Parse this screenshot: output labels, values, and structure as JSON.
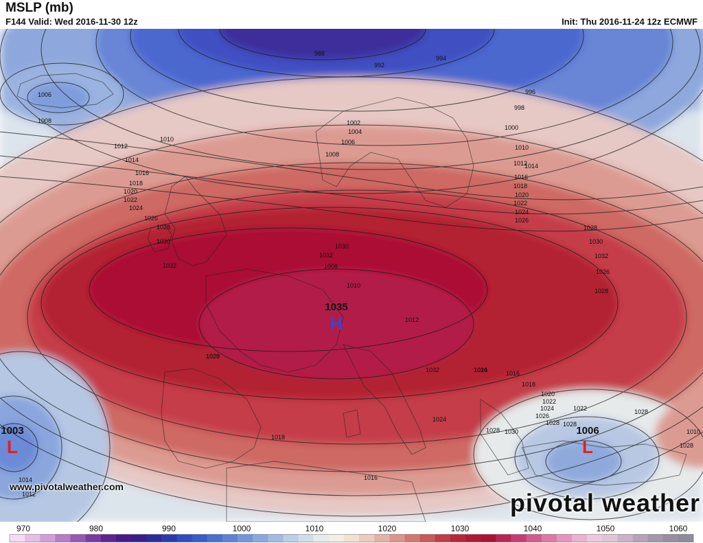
{
  "header": {
    "title": "MSLP (mb)",
    "subtitle": "F144 Valid: Wed 2016-11-30 12z",
    "init": "Init: Thu 2016-11-24 12z ECMWF"
  },
  "footer": {
    "website": "www.pivotalweather.com",
    "brand": "pivotal weather"
  },
  "pressure_centers": [
    {
      "type": "H",
      "value": "1035",
      "color": "#2f49d6"
    },
    {
      "type": "L",
      "value": "1003",
      "color": "#e02020"
    },
    {
      "type": "L",
      "value": "1006",
      "color": "#e02020"
    }
  ],
  "isobar_labels": [
    "988",
    "992",
    "994",
    "996",
    "998",
    "1000",
    "1002",
    "1004",
    "1006",
    "1008",
    "1010",
    "1012",
    "1014",
    "1016",
    "1018",
    "1020",
    "1022",
    "1024",
    "1026",
    "1028",
    "1030",
    "1032",
    "1006",
    "1008",
    "1010",
    "1012",
    "1014",
    "1016",
    "1018",
    "1020",
    "1022",
    "1024",
    "1026",
    "1028",
    "1030",
    "1032",
    "1026",
    "1028",
    "1030",
    "1032",
    "1008",
    "1010",
    "1012",
    "1014",
    "1016",
    "1018",
    "1020",
    "1022",
    "1024",
    "1026",
    "1028",
    "1028",
    "1028",
    "1030",
    "1028",
    "1026",
    "1024",
    "1022",
    "1020",
    "1018",
    "1016",
    "1014",
    "1012",
    "1010",
    "1028",
    "1032",
    "1028"
  ],
  "colorbar": {
    "ticks": [
      "970",
      "980",
      "990",
      "1000",
      "1010",
      "1020",
      "1030",
      "1040",
      "1050",
      "1060"
    ],
    "colors": [
      "#f6d9f6",
      "#e7bde8",
      "#d29ed8",
      "#b67cc7",
      "#9658b2",
      "#7a3aa0",
      "#5f2490",
      "#4a1a8a",
      "#3c1d8c",
      "#2f2a99",
      "#2a3aad",
      "#2e4cbf",
      "#3a5ec8",
      "#4a70cf",
      "#5d82d4",
      "#7496d9",
      "#8aa8dc",
      "#a3bbe1",
      "#bccde6",
      "#d3dde8",
      "#e6eaea",
      "#f2efe6",
      "#f2e0d3",
      "#edcbbf",
      "#e5b2a8",
      "#dc958c",
      "#d27770",
      "#c85a57",
      "#bf3d44",
      "#b82637",
      "#b21a32",
      "#ad1036",
      "#ba2454",
      "#c83c72",
      "#d45a8c",
      "#de78a6",
      "#e595bc",
      "#ebb1cf",
      "#efc7dc",
      "#e2c3d6",
      "#cdb2c7",
      "#b7a2b7",
      "#a497a9",
      "#978fa0",
      "#8e8a99"
    ]
  }
}
